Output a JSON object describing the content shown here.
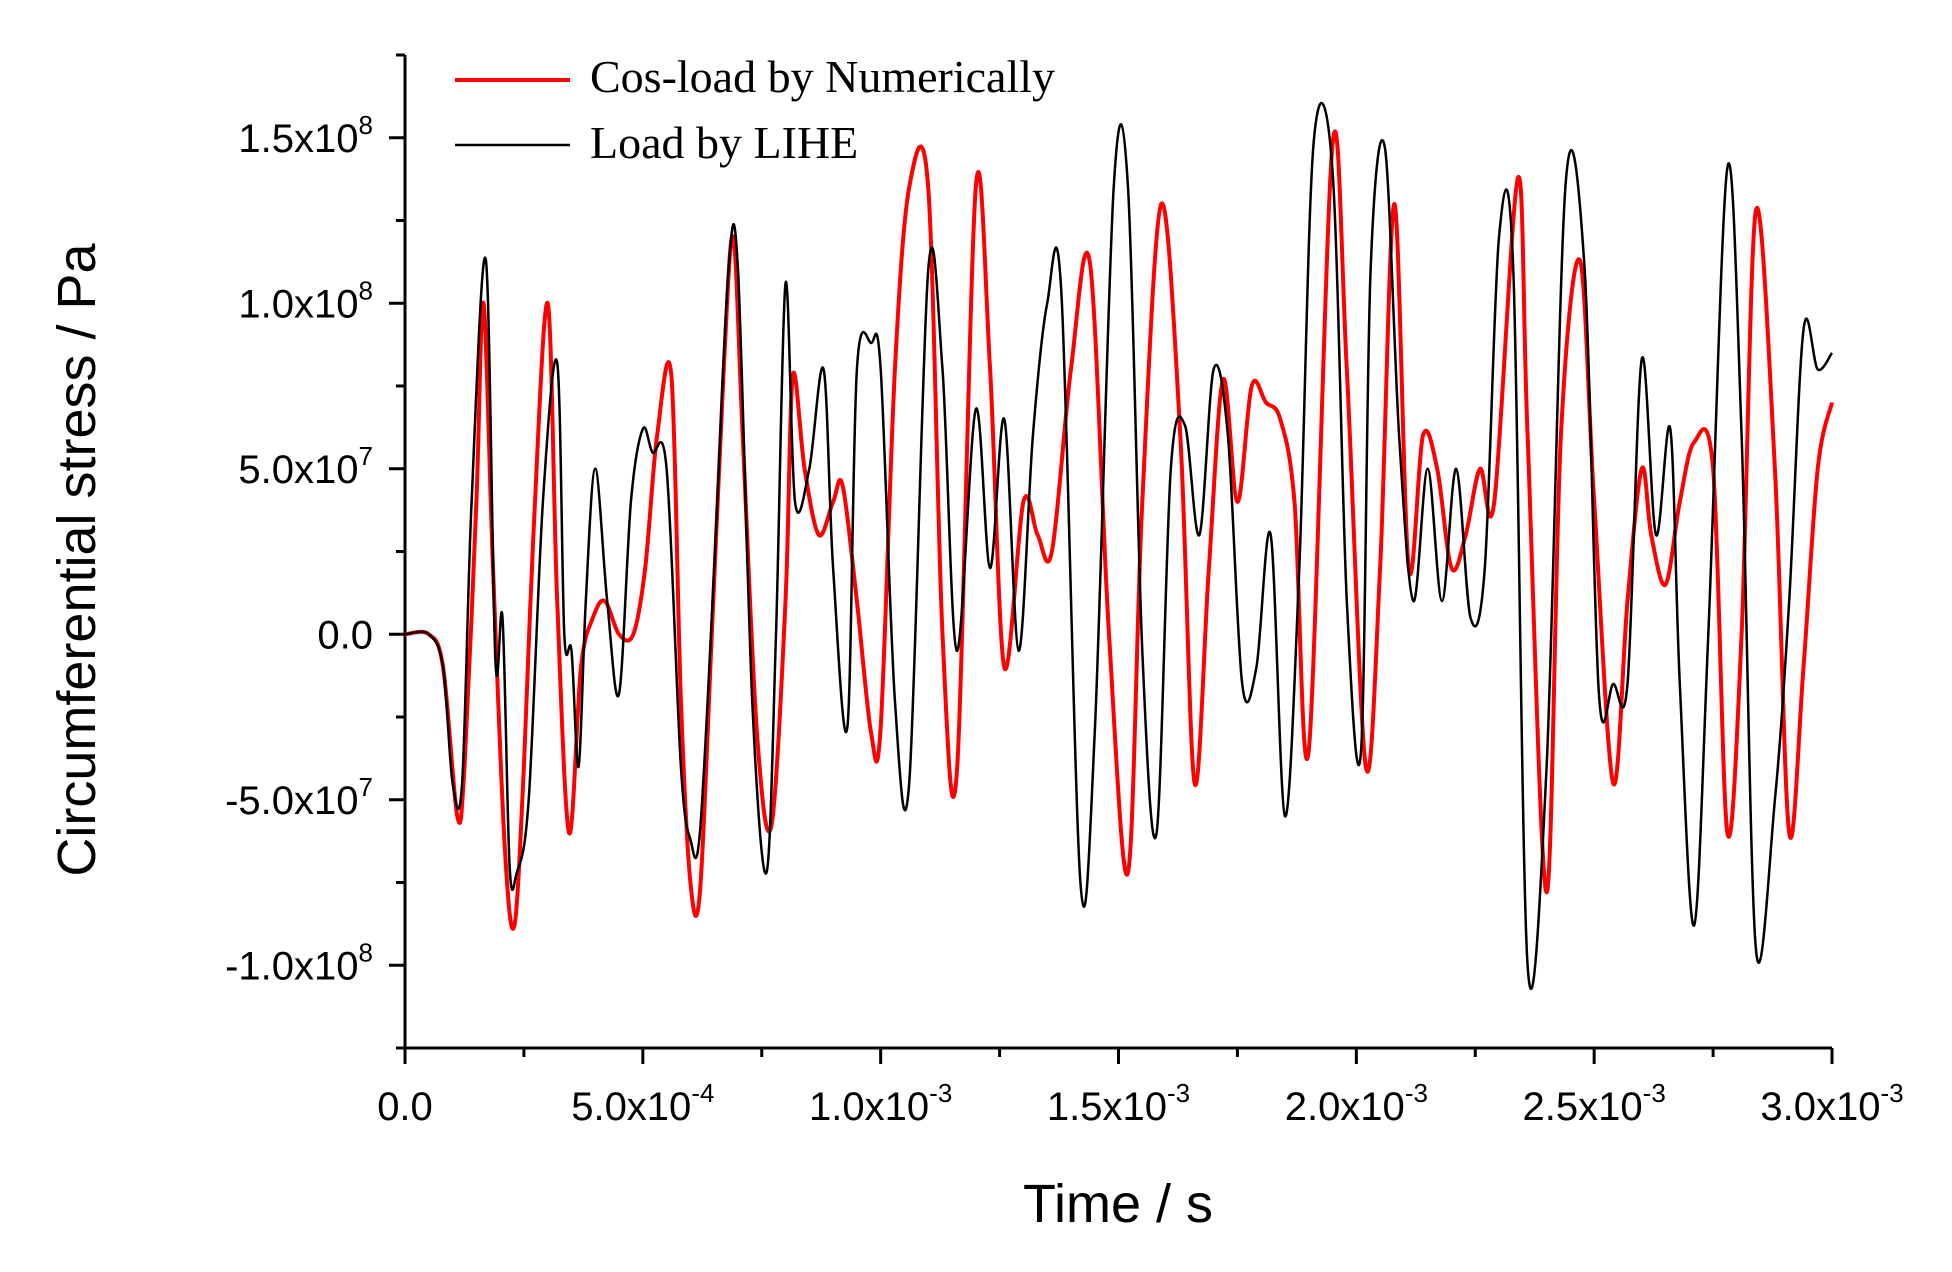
{
  "chart_data": {
    "type": "line",
    "title": "",
    "xlabel": "Time / s",
    "ylabel": "Circumferential stress / Pa",
    "xlim": [
      0,
      0.003
    ],
    "ylim": [
      -125000000,
      175000000
    ],
    "grid": false,
    "legend_position": "top-left",
    "x_ticks": [
      {
        "value": 0.0,
        "mantissa": "0.0",
        "exp": ""
      },
      {
        "value": 0.0005,
        "mantissa": "5.0x10",
        "exp": "-4"
      },
      {
        "value": 0.001,
        "mantissa": "1.0x10",
        "exp": "-3"
      },
      {
        "value": 0.0015,
        "mantissa": "1.5x10",
        "exp": "-3"
      },
      {
        "value": 0.002,
        "mantissa": "2.0x10",
        "exp": "-3"
      },
      {
        "value": 0.0025,
        "mantissa": "2.5x10",
        "exp": "-3"
      },
      {
        "value": 0.003,
        "mantissa": "3.0x10",
        "exp": "-3"
      }
    ],
    "y_ticks": [
      {
        "value": 150000000,
        "mantissa": "1.5x10",
        "exp": "8"
      },
      {
        "value": 100000000,
        "mantissa": "1.0x10",
        "exp": "8"
      },
      {
        "value": 50000000,
        "mantissa": "5.0x10",
        "exp": "7"
      },
      {
        "value": 0,
        "mantissa": "0.0",
        "exp": ""
      },
      {
        "value": -50000000,
        "mantissa": "-5.0x10",
        "exp": "7"
      },
      {
        "value": -100000000,
        "mantissa": "-1.0x10",
        "exp": "8"
      }
    ],
    "series": [
      {
        "name": "Cos-load by Numerically",
        "color": "#ff0000",
        "x": [
          0,
          5e-05,
          8e-05,
          0.00011,
          0.000125,
          0.00015,
          0.000165,
          0.000185,
          0.00021,
          0.00023,
          0.00025,
          0.00027,
          0.0003,
          0.00032,
          0.000345,
          0.00037,
          0.000395,
          0.00042,
          0.00045,
          0.00048,
          0.000505,
          0.00053,
          0.00056,
          0.00058,
          0.0006,
          0.00062,
          0.000645,
          0.00067,
          0.00069,
          0.00071,
          0.00074,
          0.00077,
          0.0008,
          0.000815,
          0.00084,
          0.00087,
          0.0009,
          0.00092,
          0.00095,
          0.00098,
          0.001,
          0.00103,
          0.00106,
          0.0011,
          0.00113,
          0.00116,
          0.0012,
          0.00123,
          0.00126,
          0.0013,
          0.00133,
          0.00136,
          0.0014,
          0.00144,
          0.00148,
          0.00152,
          0.00155,
          0.00159,
          0.00163,
          0.00166,
          0.00169,
          0.00172,
          0.00175,
          0.00178,
          0.00181,
          0.00184,
          0.00187,
          0.0019,
          0.00195,
          0.00198,
          0.00202,
          0.00205,
          0.00208,
          0.00211,
          0.00214,
          0.00217,
          0.0022,
          0.00223,
          0.00226,
          0.00229,
          0.00234,
          0.00236,
          0.0024,
          0.00243,
          0.00247,
          0.0025,
          0.00254,
          0.00257,
          0.0026,
          0.00262,
          0.00265,
          0.00268,
          0.00271,
          0.00275,
          0.00278,
          0.00281,
          0.00284,
          0.00288,
          0.00291,
          0.00294,
          0.00297,
          0.003
        ],
        "values": [
          0,
          0,
          -10000000,
          -55000000,
          -40000000,
          40000000,
          100000000,
          20000000,
          -65000000,
          -88000000,
          -40000000,
          30000000,
          100000000,
          10000000,
          -60000000,
          -10000000,
          5000000,
          10000000,
          0,
          0,
          20000000,
          60000000,
          78000000,
          -20000000,
          -75000000,
          -78000000,
          0,
          80000000,
          120000000,
          60000000,
          -30000000,
          -58000000,
          10000000,
          78000000,
          50000000,
          30000000,
          40000000,
          45000000,
          10000000,
          -30000000,
          -28000000,
          80000000,
          135000000,
          135000000,
          0,
          -42000000,
          135000000,
          80000000,
          -10000000,
          40000000,
          30000000,
          25000000,
          80000000,
          112000000,
          0,
          -72000000,
          40000000,
          130000000,
          60000000,
          -45000000,
          20000000,
          77000000,
          40000000,
          75000000,
          70000000,
          65000000,
          40000000,
          -35000000,
          148000000,
          80000000,
          -40000000,
          20000000,
          130000000,
          20000000,
          60000000,
          50000000,
          20000000,
          30000000,
          50000000,
          40000000,
          138000000,
          60000000,
          -78000000,
          60000000,
          113000000,
          40000000,
          -45000000,
          10000000,
          50000000,
          30000000,
          15000000,
          40000000,
          58000000,
          50000000,
          -60000000,
          0,
          128000000,
          50000000,
          -60000000,
          -10000000,
          50000000,
          70000000
        ]
      },
      {
        "name": "Load by LIHE",
        "color": "#000000",
        "x": [
          0,
          5e-05,
          8e-05,
          0.0001,
          0.00012,
          0.00014,
          0.00017,
          0.00019,
          0.000205,
          0.00022,
          0.000235,
          0.00026,
          0.00029,
          0.00032,
          0.000335,
          0.00035,
          0.000365,
          0.00038,
          0.0004,
          0.000425,
          0.00045,
          0.000475,
          0.0005,
          0.00052,
          0.00055,
          0.00058,
          0.0006,
          0.00062,
          0.00065,
          0.00068,
          0.0007,
          0.00073,
          0.00076,
          0.00078,
          0.0008,
          0.00082,
          0.00085,
          0.00088,
          0.0009,
          0.00093,
          0.00095,
          0.00098,
          0.001,
          0.00103,
          0.00106,
          0.0011,
          0.00113,
          0.00116,
          0.0012,
          0.00123,
          0.00126,
          0.00129,
          0.00132,
          0.00135,
          0.00138,
          0.00142,
          0.00145,
          0.00149,
          0.00152,
          0.00155,
          0.00158,
          0.00161,
          0.00164,
          0.00167,
          0.0017,
          0.00173,
          0.00176,
          0.00179,
          0.00182,
          0.00185,
          0.00188,
          0.00191,
          0.00195,
          0.00198,
          0.00201,
          0.00203,
          0.00206,
          0.00209,
          0.00212,
          0.00215,
          0.00218,
          0.00221,
          0.00224,
          0.00227,
          0.0023,
          0.00233,
          0.00236,
          0.0024,
          0.00244,
          0.00248,
          0.00251,
          0.00254,
          0.00257,
          0.0026,
          0.00263,
          0.00266,
          0.00268,
          0.00271,
          0.00274,
          0.00278,
          0.00281,
          0.00284,
          0.00288,
          0.00291,
          0.00294,
          0.00297,
          0.003
        ],
        "values": [
          0,
          0,
          -10000000,
          -45000000,
          -45000000,
          40000000,
          113000000,
          -8000000,
          5000000,
          -70000000,
          -72000000,
          -50000000,
          40000000,
          82000000,
          0,
          -5000000,
          -40000000,
          10000000,
          50000000,
          10000000,
          -18000000,
          40000000,
          62000000,
          55000000,
          50000000,
          -40000000,
          -62000000,
          -60000000,
          20000000,
          110000000,
          110000000,
          -20000000,
          -72000000,
          0,
          106000000,
          40000000,
          50000000,
          80000000,
          20000000,
          -28000000,
          80000000,
          88000000,
          80000000,
          -20000000,
          -45000000,
          110000000,
          80000000,
          -5000000,
          68000000,
          20000000,
          65000000,
          -5000000,
          60000000,
          100000000,
          103000000,
          -75000000,
          -30000000,
          135000000,
          135000000,
          -5000000,
          -60000000,
          50000000,
          63000000,
          30000000,
          80000000,
          60000000,
          -15000000,
          -10000000,
          30000000,
          -55000000,
          20000000,
          148000000,
          140000000,
          10000000,
          -35000000,
          110000000,
          147000000,
          60000000,
          10000000,
          50000000,
          10000000,
          50000000,
          5000000,
          20000000,
          120000000,
          110000000,
          -100000000,
          -40000000,
          136000000,
          110000000,
          -18000000,
          -15000000,
          -15000000,
          83000000,
          30000000,
          62000000,
          -15000000,
          -88000000,
          0,
          141000000,
          60000000,
          -95000000,
          -50000000,
          10000000,
          92000000,
          80000000,
          85000000
        ]
      }
    ]
  }
}
